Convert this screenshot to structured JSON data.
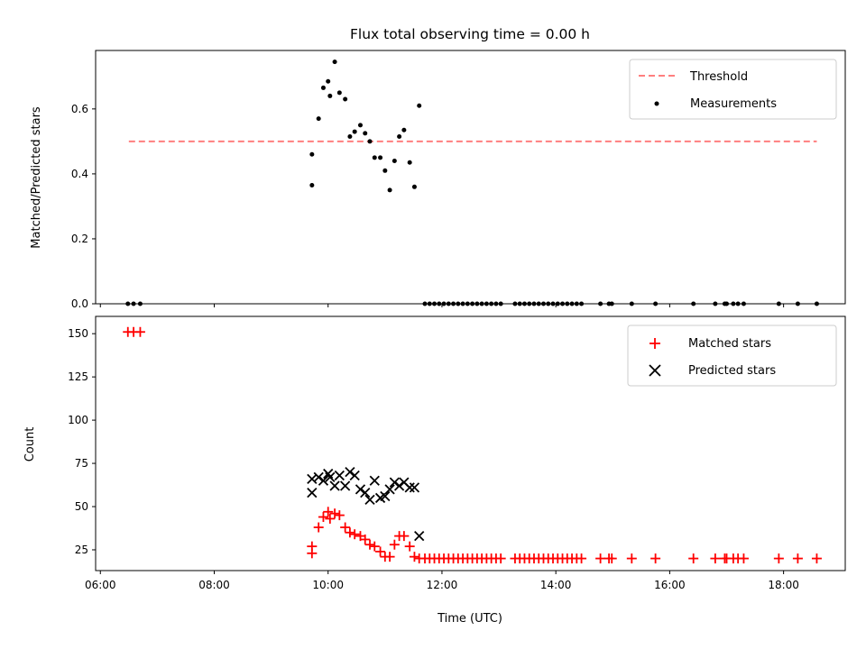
{
  "figure": {
    "title": "Flux total observing time = 0.00 h"
  },
  "chart_data": [
    {
      "type": "scatter",
      "panel": "top",
      "ylabel": "Matched/Predicted stars",
      "xlim": [
        "05:55",
        "19:05"
      ],
      "ylim": [
        0,
        0.78
      ],
      "yticks": [
        0.0,
        0.2,
        0.4,
        0.6
      ],
      "ytick_labels": [
        "0.0",
        "0.2",
        "0.4",
        "0.6"
      ],
      "legend_position": "top-right",
      "threshold": {
        "name": "Threshold",
        "value": 0.5,
        "x": [
          "06:30",
          "18:35"
        ],
        "color": "#ff7f7f",
        "style": "dashed"
      },
      "series": [
        {
          "name": "Measurements",
          "color": "#000000",
          "marker": "dot",
          "points": [
            [
              "06:29",
              0
            ],
            [
              "06:35",
              0
            ],
            [
              "06:42",
              0
            ],
            [
              "09:43",
              0.365
            ],
            [
              "09:43",
              0.46
            ],
            [
              "09:50",
              0.57
            ],
            [
              "09:55",
              0.665
            ],
            [
              "10:00",
              0.685
            ],
            [
              "10:02",
              0.64
            ],
            [
              "10:07",
              0.745
            ],
            [
              "10:12",
              0.65
            ],
            [
              "10:18",
              0.63
            ],
            [
              "10:23",
              0.515
            ],
            [
              "10:28",
              0.53
            ],
            [
              "10:34",
              0.55
            ],
            [
              "10:39",
              0.525
            ],
            [
              "10:44",
              0.5
            ],
            [
              "10:49",
              0.45
            ],
            [
              "10:55",
              0.45
            ],
            [
              "11:00",
              0.41
            ],
            [
              "11:05",
              0.35
            ],
            [
              "11:10",
              0.44
            ],
            [
              "11:15",
              0.515
            ],
            [
              "11:20",
              0.535
            ],
            [
              "11:26",
              0.435
            ],
            [
              "11:31",
              0.36
            ],
            [
              "11:36",
              0.61
            ],
            [
              "11:42",
              0
            ],
            [
              "11:47",
              0
            ],
            [
              "11:52",
              0
            ],
            [
              "11:57",
              0
            ],
            [
              "12:02",
              0
            ],
            [
              "12:07",
              0
            ],
            [
              "12:12",
              0
            ],
            [
              "12:17",
              0
            ],
            [
              "12:22",
              0
            ],
            [
              "12:27",
              0
            ],
            [
              "12:32",
              0
            ],
            [
              "12:37",
              0
            ],
            [
              "12:42",
              0
            ],
            [
              "12:47",
              0
            ],
            [
              "12:52",
              0
            ],
            [
              "12:57",
              0
            ],
            [
              "13:02",
              0
            ],
            [
              "13:17",
              0
            ],
            [
              "13:22",
              0
            ],
            [
              "13:27",
              0
            ],
            [
              "13:32",
              0
            ],
            [
              "13:37",
              0
            ],
            [
              "13:42",
              0
            ],
            [
              "13:47",
              0
            ],
            [
              "13:52",
              0
            ],
            [
              "13:57",
              0
            ],
            [
              "14:02",
              0
            ],
            [
              "14:07",
              0
            ],
            [
              "14:12",
              0
            ],
            [
              "14:17",
              0
            ],
            [
              "14:22",
              0
            ],
            [
              "14:27",
              0
            ],
            [
              "14:47",
              0
            ],
            [
              "14:56",
              0
            ],
            [
              "14:59",
              0
            ],
            [
              "15:20",
              0
            ],
            [
              "15:45",
              0
            ],
            [
              "16:25",
              0
            ],
            [
              "16:48",
              0
            ],
            [
              "16:58",
              0
            ],
            [
              "17:00",
              0
            ],
            [
              "17:07",
              0
            ],
            [
              "17:12",
              0
            ],
            [
              "17:18",
              0
            ],
            [
              "17:55",
              0
            ],
            [
              "18:15",
              0
            ],
            [
              "18:35",
              0
            ]
          ]
        }
      ]
    },
    {
      "type": "scatter",
      "panel": "bottom",
      "xlabel": "Time (UTC)",
      "ylabel": "Count",
      "xlim": [
        "05:55",
        "19:05"
      ],
      "ylim": [
        13,
        160
      ],
      "xticks": [
        "06:00",
        "08:00",
        "10:00",
        "12:00",
        "14:00",
        "16:00",
        "18:00"
      ],
      "xtick_labels": [
        "06:00",
        "08:00",
        "10:00",
        "12:00",
        "14:00",
        "16:00",
        "18:00"
      ],
      "yticks": [
        25,
        50,
        75,
        100,
        125,
        150
      ],
      "ytick_labels": [
        "25",
        "50",
        "75",
        "100",
        "125",
        "150"
      ],
      "legend_position": "top-right",
      "series": [
        {
          "name": "Matched stars",
          "color": "#ff0000",
          "marker": "plus",
          "points": [
            [
              "06:29",
              151
            ],
            [
              "06:35",
              151
            ],
            [
              "06:42",
              151
            ],
            [
              "09:43",
              23
            ],
            [
              "09:43",
              27
            ],
            [
              "09:50",
              38
            ],
            [
              "09:55",
              44
            ],
            [
              "10:00",
              47
            ],
            [
              "10:02",
              43
            ],
            [
              "10:07",
              46
            ],
            [
              "10:12",
              45
            ],
            [
              "10:18",
              38
            ],
            [
              "10:23",
              35
            ],
            [
              "10:28",
              34
            ],
            [
              "10:34",
              33
            ],
            [
              "10:39",
              31
            ],
            [
              "10:44",
              28
            ],
            [
              "10:49",
              27
            ],
            [
              "10:55",
              24
            ],
            [
              "11:00",
              21
            ],
            [
              "11:05",
              21
            ],
            [
              "11:10",
              28
            ],
            [
              "11:15",
              33
            ],
            [
              "11:20",
              33
            ],
            [
              "11:26",
              27
            ],
            [
              "11:31",
              21
            ],
            [
              "11:36",
              20
            ],
            [
              "11:42",
              20
            ],
            [
              "11:47",
              20
            ],
            [
              "11:52",
              20
            ],
            [
              "11:57",
              20
            ],
            [
              "12:02",
              20
            ],
            [
              "12:07",
              20
            ],
            [
              "12:12",
              20
            ],
            [
              "12:17",
              20
            ],
            [
              "12:22",
              20
            ],
            [
              "12:27",
              20
            ],
            [
              "12:32",
              20
            ],
            [
              "12:37",
              20
            ],
            [
              "12:42",
              20
            ],
            [
              "12:47",
              20
            ],
            [
              "12:52",
              20
            ],
            [
              "12:57",
              20
            ],
            [
              "13:02",
              20
            ],
            [
              "13:17",
              20
            ],
            [
              "13:22",
              20
            ],
            [
              "13:27",
              20
            ],
            [
              "13:32",
              20
            ],
            [
              "13:37",
              20
            ],
            [
              "13:42",
              20
            ],
            [
              "13:47",
              20
            ],
            [
              "13:52",
              20
            ],
            [
              "13:57",
              20
            ],
            [
              "14:02",
              20
            ],
            [
              "14:07",
              20
            ],
            [
              "14:12",
              20
            ],
            [
              "14:17",
              20
            ],
            [
              "14:22",
              20
            ],
            [
              "14:27",
              20
            ],
            [
              "14:47",
              20
            ],
            [
              "14:56",
              20
            ],
            [
              "14:59",
              20
            ],
            [
              "15:20",
              20
            ],
            [
              "15:45",
              20
            ],
            [
              "16:25",
              20
            ],
            [
              "16:48",
              20
            ],
            [
              "16:58",
              20
            ],
            [
              "17:00",
              20
            ],
            [
              "17:07",
              20
            ],
            [
              "17:12",
              20
            ],
            [
              "17:18",
              20
            ],
            [
              "17:55",
              20
            ],
            [
              "18:15",
              20
            ],
            [
              "18:35",
              20
            ]
          ]
        },
        {
          "name": "Predicted stars",
          "color": "#000000",
          "marker": "x",
          "points": [
            [
              "09:43",
              58
            ],
            [
              "09:43",
              66
            ],
            [
              "09:50",
              67
            ],
            [
              "09:55",
              65
            ],
            [
              "10:00",
              69
            ],
            [
              "10:02",
              67
            ],
            [
              "10:07",
              62
            ],
            [
              "10:12",
              68
            ],
            [
              "10:18",
              62
            ],
            [
              "10:23",
              70
            ],
            [
              "10:28",
              68
            ],
            [
              "10:34",
              60
            ],
            [
              "10:39",
              58
            ],
            [
              "10:44",
              54
            ],
            [
              "10:49",
              65
            ],
            [
              "10:55",
              55
            ],
            [
              "11:00",
              56
            ],
            [
              "11:05",
              60
            ],
            [
              "11:10",
              64
            ],
            [
              "11:15",
              62
            ],
            [
              "11:20",
              64
            ],
            [
              "11:26",
              61
            ],
            [
              "11:31",
              61
            ],
            [
              "11:36",
              33
            ]
          ]
        }
      ]
    }
  ]
}
